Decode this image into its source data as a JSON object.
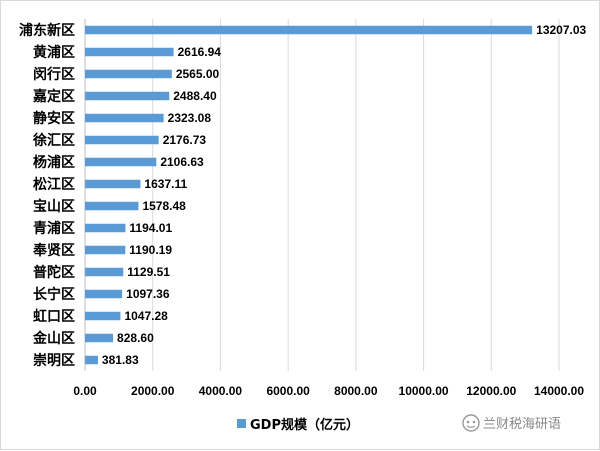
{
  "chart_data": {
    "type": "bar",
    "orientation": "horizontal",
    "categories": [
      "浦东新区",
      "黄浦区",
      "闵行区",
      "嘉定区",
      "静安区",
      "徐汇区",
      "杨浦区",
      "松江区",
      "宝山区",
      "青浦区",
      "奉贤区",
      "普陀区",
      "长宁区",
      "虹口区",
      "金山区",
      "崇明区"
    ],
    "series": [
      {
        "name": "GDP规模（亿元）",
        "values": [
          13207.03,
          2616.94,
          2565.0,
          2488.4,
          2323.08,
          2176.73,
          2106.63,
          1637.11,
          1578.48,
          1194.01,
          1190.19,
          1129.51,
          1097.36,
          1047.28,
          828.6,
          381.83
        ],
        "value_labels": [
          "13207.03",
          "2616.94",
          "2565.00",
          "2488.40",
          "2323.08",
          "2176.73",
          "2106.63",
          "1637.11",
          "1578.48",
          "1194.01",
          "1190.19",
          "1129.51",
          "1097.36",
          "1047.28",
          "828.60",
          "381.83"
        ],
        "color": "#5b9bd5"
      }
    ],
    "xlim": [
      0,
      14000
    ],
    "x_ticks": [
      "0.00",
      "2000.00",
      "4000.00",
      "6000.00",
      "8000.00",
      "10000.00",
      "12000.00",
      "14000.00"
    ],
    "grid": true,
    "legend_position": "bottom"
  },
  "watermark": {
    "text": "兰财税海研语",
    "icon": "wechat-icon"
  },
  "colors": {
    "bar": "#5b9bd5",
    "grid": "#d9d9d9",
    "axis": "#bfbfbf"
  }
}
